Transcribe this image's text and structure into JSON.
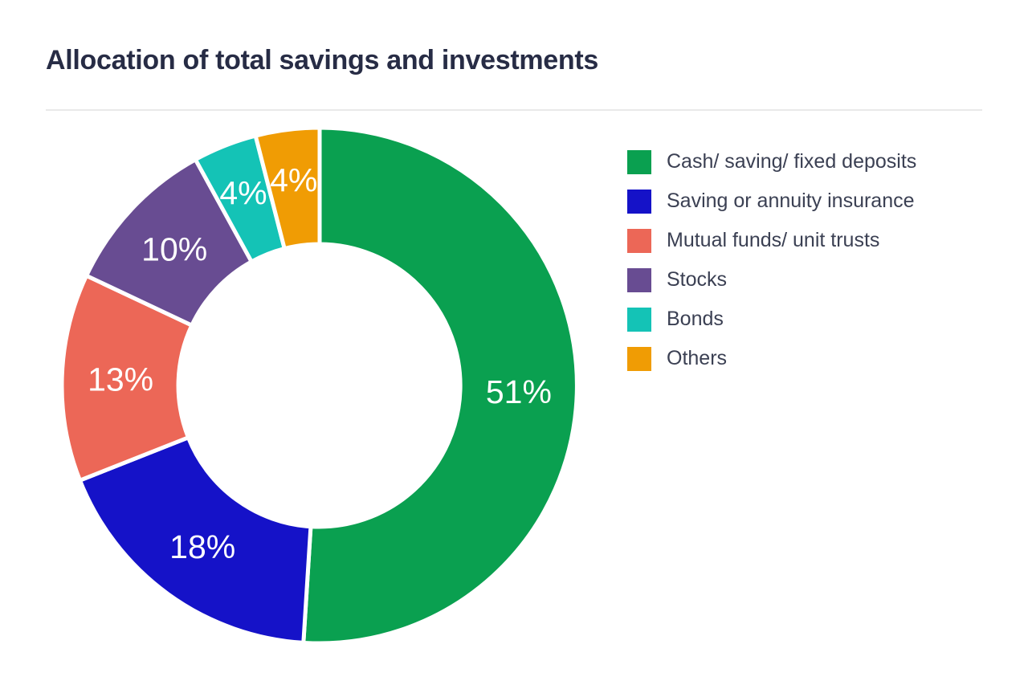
{
  "title": "Allocation of total savings and investments",
  "chart_data": {
    "type": "pie",
    "subtype": "donut",
    "title": "Allocation of total savings and investments",
    "unit": "%",
    "legend_position": "right",
    "labels_on_slices": true,
    "segments": [
      {
        "label": "Cash/ saving/ fixed deposits",
        "value": 51,
        "display": "51%",
        "color": "#0aa050"
      },
      {
        "label": "Saving or annuity insurance",
        "value": 18,
        "display": "18%",
        "color": "#1512c8"
      },
      {
        "label": "Mutual funds/ unit trusts",
        "value": 13,
        "display": "13%",
        "color": "#ec6757"
      },
      {
        "label": "Stocks",
        "value": 10,
        "display": "10%",
        "color": "#684c92"
      },
      {
        "label": "Bonds",
        "value": 4,
        "display": "4%",
        "color": "#14c3b6"
      },
      {
        "label": "Others",
        "value": 4,
        "display": "4%",
        "color": "#f09c04"
      }
    ]
  },
  "colors": {
    "title_text": "#272c45",
    "legend_text": "#3b4053",
    "slice_label_text": "#ffffff",
    "divider": "#e9e9e9",
    "background": "#ffffff",
    "slice_border": "#ffffff"
  }
}
